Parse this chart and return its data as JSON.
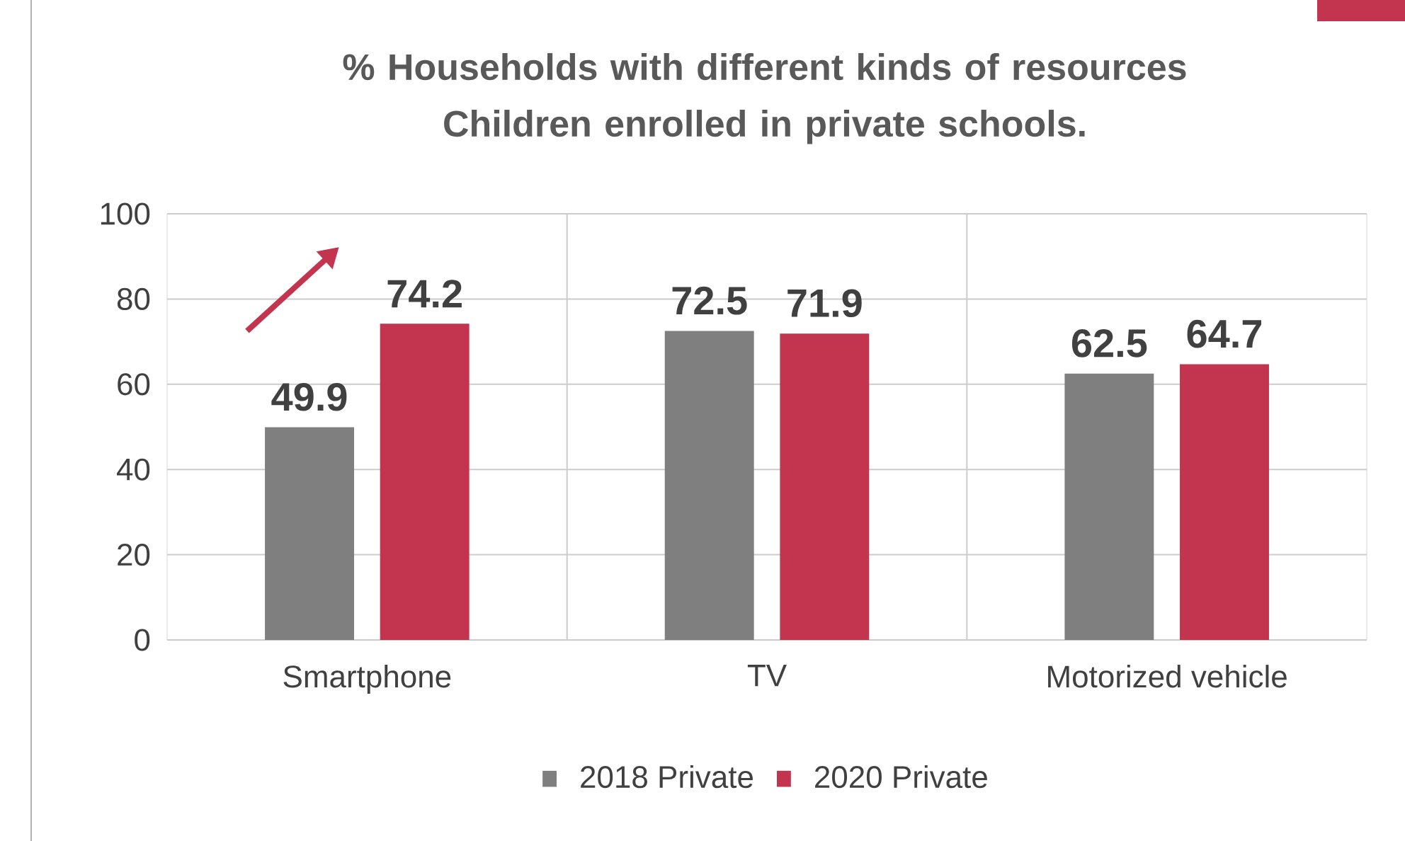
{
  "chart_data": {
    "type": "bar",
    "title": "% Households with different kinds of resources\nChildren enrolled in private schools.",
    "categories": [
      "Smartphone",
      "TV",
      "Motorized vehicle"
    ],
    "series": [
      {
        "name": "2018 Private",
        "color": "#7f7f7f",
        "values": [
          49.9,
          72.5,
          62.5
        ]
      },
      {
        "name": "2020 Private",
        "color": "#c3354f",
        "values": [
          74.2,
          71.9,
          64.7
        ]
      }
    ],
    "ylim": [
      0,
      100
    ],
    "yticks": [
      0,
      20,
      40,
      60,
      80,
      100
    ],
    "grid": true,
    "legend": "bottom",
    "data_labels": true
  }
}
